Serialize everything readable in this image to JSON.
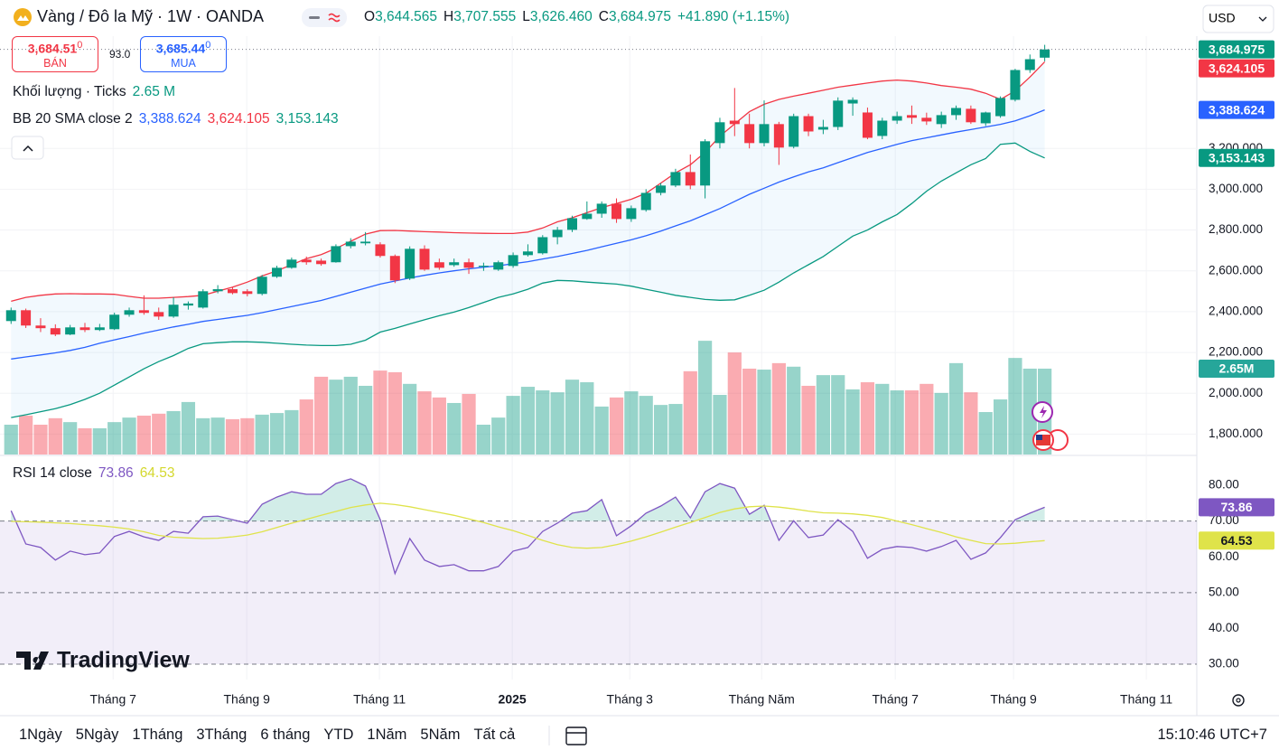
{
  "header": {
    "symbol": "Vàng / Đô la Mỹ · 1W · OANDA",
    "ohlc": [
      {
        "key": "O",
        "value": "3,644.565"
      },
      {
        "key": "H",
        "value": "3,707.555"
      },
      {
        "key": "L",
        "value": "3,626.460"
      },
      {
        "key": "C",
        "value": "3,684.975"
      }
    ],
    "change": "+41.890 (+1.15%)",
    "currency": "USD"
  },
  "quote": {
    "sell": {
      "price": "3,684.51",
      "digit": "0",
      "label": "BÁN"
    },
    "spread": "93.0",
    "buy": {
      "price": "3,685.44",
      "digit": "0",
      "label": "MUA"
    }
  },
  "chart_data": [
    {
      "type": "candlestick",
      "xlim": [
        -0.75,
        80.3
      ],
      "xticks": [
        {
          "value": 6.91,
          "label": "Tháng 7"
        },
        {
          "value": 15.96,
          "label": "Tháng 9"
        },
        {
          "value": 24.95,
          "label": "Tháng 11"
        },
        {
          "value": 33.94,
          "label": "2025"
        },
        {
          "value": 41.9,
          "label": "Tháng 3"
        },
        {
          "value": 50.83,
          "label": "Tháng Năm"
        },
        {
          "value": 59.88,
          "label": "Tháng 7"
        },
        {
          "value": 67.89,
          "label": "Tháng 9"
        },
        {
          "value": 76.88,
          "label": "Tháng 11"
        }
      ],
      "ylim": [
        1700,
        3750
      ],
      "yticks": [
        {
          "value": 1800,
          "label": "1,800.000"
        },
        {
          "value": 2000,
          "label": "2,000.000"
        },
        {
          "value": 2200,
          "label": "2,200.000"
        },
        {
          "value": 2400,
          "label": "2,400.000"
        },
        {
          "value": 2600,
          "label": "2,600.000"
        },
        {
          "value": 2800,
          "label": "2,800.000"
        },
        {
          "value": 3000,
          "label": "3,000.000"
        },
        {
          "value": 3200,
          "label": "3,200.000"
        }
      ],
      "grid": true,
      "up_color": "#089981",
      "down_color": "#f23645",
      "open": [
        2354,
        2407,
        2332,
        2319,
        2288,
        2323,
        2310,
        2314,
        2385,
        2407,
        2398,
        2376,
        2430,
        2420,
        2500,
        2510,
        2500,
        2487,
        2571,
        2615,
        2655,
        2650,
        2642,
        2721,
        2735,
        2730,
        2673,
        2562,
        2708,
        2642,
        2628,
        2642,
        2620,
        2606,
        2624,
        2677,
        2686,
        2765,
        2801,
        2854,
        2880,
        2929,
        2854,
        2898,
        2982,
        3018,
        3084,
        3018,
        3226,
        3336,
        3319,
        3226,
        3319,
        3208,
        3358,
        3292,
        3305,
        3420,
        3376,
        3261,
        3336,
        3363,
        3350,
        3319,
        3363,
        3394,
        3323,
        3358,
        3438,
        3584,
        3644.565
      ],
      "high": [
        2420,
        2415,
        2368,
        2338,
        2335,
        2345,
        2340,
        2395,
        2420,
        2480,
        2420,
        2470,
        2450,
        2510,
        2530,
        2520,
        2510,
        2580,
        2625,
        2665,
        2670,
        2660,
        2730,
        2760,
        2790,
        2740,
        2680,
        2720,
        2725,
        2660,
        2660,
        2660,
        2640,
        2650,
        2690,
        2730,
        2775,
        2815,
        2870,
        2940,
        2940,
        2955,
        2920,
        3000,
        3030,
        3100,
        3170,
        3245,
        3350,
        3496,
        3370,
        3435,
        3330,
        3370,
        3370,
        3340,
        3450,
        3450,
        3400,
        3350,
        3380,
        3410,
        3375,
        3380,
        3410,
        3410,
        3380,
        3455,
        3590,
        3660,
        3707.555
      ],
      "low": [
        2340,
        2320,
        2300,
        2280,
        2285,
        2300,
        2305,
        2310,
        2375,
        2385,
        2360,
        2370,
        2410,
        2415,
        2490,
        2485,
        2475,
        2480,
        2565,
        2610,
        2630,
        2625,
        2640,
        2710,
        2725,
        2665,
        2540,
        2555,
        2600,
        2605,
        2620,
        2585,
        2600,
        2600,
        2615,
        2670,
        2680,
        2730,
        2790,
        2850,
        2860,
        2835,
        2840,
        2890,
        2970,
        3010,
        3000,
        2955,
        3200,
        3260,
        3200,
        3210,
        3119,
        3200,
        3260,
        3270,
        3290,
        3360,
        3245,
        3245,
        3320,
        3320,
        3315,
        3300,
        3340,
        3320,
        3310,
        3350,
        3430,
        3570,
        3626.46
      ],
      "close": [
        2407,
        2332,
        2319,
        2288,
        2323,
        2310,
        2323,
        2385,
        2407,
        2394,
        2376,
        2434,
        2440,
        2500,
        2510,
        2491,
        2487,
        2571,
        2615,
        2655,
        2642,
        2633,
        2721,
        2743,
        2743,
        2673,
        2553,
        2708,
        2606,
        2615,
        2642,
        2615,
        2625,
        2642,
        2677,
        2695,
        2765,
        2801,
        2858,
        2880,
        2929,
        2854,
        2907,
        2982,
        3018,
        3084,
        3018,
        3235,
        3328,
        3319,
        3226,
        3319,
        3204,
        3358,
        3283,
        3305,
        3434,
        3438,
        3252,
        3336,
        3358,
        3350,
        3332,
        3363,
        3398,
        3328,
        3376,
        3447,
        3584,
        3637,
        3684.975
      ],
      "volume_title": "Khối lượng · Ticks",
      "volume_ylim": [
        0,
        12.91
      ],
      "volume": [
        0.92,
        1.2,
        0.92,
        1.12,
        1.0,
        0.81,
        0.81,
        1.0,
        1.14,
        1.2,
        1.26,
        1.34,
        1.62,
        1.12,
        1.14,
        1.09,
        1.12,
        1.23,
        1.28,
        1.37,
        1.7,
        2.4,
        2.31,
        2.4,
        2.12,
        2.59,
        2.54,
        2.18,
        1.95,
        1.76,
        1.59,
        1.87,
        0.92,
        1.14,
        1.81,
        2.09,
        1.98,
        1.92,
        2.31,
        2.23,
        1.48,
        1.76,
        1.95,
        1.81,
        1.53,
        1.56,
        2.57,
        3.51,
        1.84,
        3.15,
        2.65,
        2.62,
        2.82,
        2.71,
        2.12,
        2.45,
        2.45,
        2.01,
        2.23,
        2.18,
        1.98,
        1.98,
        2.18,
        1.9,
        2.82,
        1.92,
        1.31,
        1.7,
        2.98,
        2.65,
        2.65
      ],
      "volume_labels": {
        "70": "2.65 M"
      },
      "volume_badge": "2.65M",
      "indicator_title": "BB 20 SMA close 2",
      "series": [
        {
          "color": "#2962ff",
          "value_labels": {
            "70": "3,388.624"
          },
          "values": [
            2168,
            2178,
            2188,
            2198,
            2210,
            2225,
            2245,
            2262,
            2278,
            2295,
            2310,
            2325,
            2338,
            2352,
            2362,
            2372,
            2382,
            2395,
            2410,
            2425,
            2440,
            2455,
            2475,
            2495,
            2515,
            2535,
            2550,
            2565,
            2578,
            2590,
            2600,
            2610,
            2618,
            2625,
            2635,
            2645,
            2658,
            2670,
            2685,
            2700,
            2718,
            2735,
            2752,
            2772,
            2795,
            2820,
            2845,
            2875,
            2905,
            2940,
            2975,
            3005,
            3035,
            3060,
            3085,
            3105,
            3130,
            3155,
            3180,
            3200,
            3220,
            3238,
            3252,
            3266,
            3280,
            3292,
            3305,
            3318,
            3335,
            3360,
            3388.624
          ]
        },
        {
          "color": "#f23645",
          "value_labels": {
            "70": "3,624.105"
          },
          "values": [
            2451,
            2470,
            2480,
            2487,
            2488,
            2487,
            2487,
            2485,
            2475,
            2466,
            2466,
            2470,
            2474,
            2480,
            2500,
            2520,
            2545,
            2575,
            2600,
            2630,
            2660,
            2680,
            2710,
            2745,
            2780,
            2797,
            2798,
            2795,
            2792,
            2790,
            2787,
            2785,
            2784,
            2783,
            2783,
            2790,
            2810,
            2840,
            2860,
            2885,
            2910,
            2930,
            2951,
            2980,
            3030,
            3080,
            3120,
            3180,
            3260,
            3320,
            3380,
            3416,
            3440,
            3456,
            3470,
            3485,
            3500,
            3510,
            3520,
            3530,
            3535,
            3530,
            3520,
            3508,
            3500,
            3490,
            3470,
            3440,
            3482,
            3550,
            3624.105
          ]
        },
        {
          "color": "#089981",
          "value_labels": {
            "70": "3,153.143"
          },
          "values": [
            1881,
            1895,
            1910,
            1925,
            1945,
            1970,
            2000,
            2040,
            2080,
            2120,
            2155,
            2185,
            2220,
            2243,
            2248,
            2252,
            2252,
            2250,
            2245,
            2240,
            2236,
            2234,
            2234,
            2240,
            2260,
            2300,
            2318,
            2340,
            2360,
            2380,
            2398,
            2420,
            2445,
            2470,
            2487,
            2510,
            2540,
            2553,
            2551,
            2545,
            2540,
            2535,
            2525,
            2510,
            2495,
            2480,
            2470,
            2460,
            2456,
            2458,
            2480,
            2505,
            2545,
            2590,
            2630,
            2670,
            2720,
            2770,
            2800,
            2840,
            2876,
            2930,
            2990,
            3040,
            3080,
            3120,
            3150,
            3220,
            3226,
            3185,
            3153.143
          ]
        }
      ]
    },
    {
      "type": "line",
      "title": "RSI 14 close",
      "ylim": [
        25.7,
        88.1
      ],
      "yticks": [
        {
          "value": 30,
          "label": "30.00"
        },
        {
          "value": 40,
          "label": "40.00"
        },
        {
          "value": 50,
          "label": "50.00"
        },
        {
          "value": 60,
          "label": "60.00"
        },
        {
          "value": 70,
          "label": "70.00"
        },
        {
          "value": 80,
          "label": "80.00"
        }
      ],
      "bands": [
        70,
        50,
        30
      ],
      "series": [
        {
          "color": "#7e57c2",
          "values": [
            72.9,
            63.6,
            62.6,
            59.1,
            61.6,
            60.6,
            61.1,
            65.7,
            67.1,
            65.6,
            64.6,
            67.1,
            66.6,
            71.2,
            71.4,
            70.4,
            69.4,
            74.7,
            76.7,
            78.2,
            77.5,
            77.5,
            80.5,
            81.8,
            79.8,
            70.4,
            55.3,
            65.1,
            59.1,
            57.3,
            57.8,
            56.1,
            56.1,
            57.3,
            61.6,
            62.6,
            67.1,
            69.4,
            72.2,
            72.9,
            76.0,
            65.9,
            68.7,
            72.2,
            74.2,
            76.7,
            70.9,
            78.2,
            80.5,
            79.2,
            71.9,
            74.4,
            64.6,
            70.1,
            65.4,
            66.1,
            70.4,
            67.1,
            59.6,
            62.1,
            62.9,
            62.6,
            61.6,
            62.9,
            64.6,
            59.3,
            61.1,
            65.4,
            70.4,
            72.2,
            73.86
          ]
        },
        {
          "color": "#dfe34a",
          "values": [
            69.9,
            69.8,
            69.7,
            69.5,
            69.3,
            69.0,
            68.7,
            68.3,
            67.8,
            67.0,
            66.0,
            65.5,
            65.3,
            65.1,
            65.2,
            65.6,
            66.1,
            67.0,
            68.2,
            69.4,
            70.5,
            71.6,
            72.7,
            73.8,
            74.5,
            75.0,
            74.6,
            74.0,
            73.2,
            72.4,
            71.6,
            70.6,
            69.6,
            68.4,
            67.3,
            66.0,
            64.6,
            63.4,
            62.6,
            62.4,
            62.6,
            63.4,
            64.4,
            65.6,
            66.9,
            68.3,
            69.6,
            71.0,
            72.4,
            73.4,
            74.0,
            74.2,
            73.9,
            73.4,
            72.8,
            72.3,
            72.2,
            72.0,
            71.6,
            71.0,
            70.0,
            69.0,
            67.9,
            66.8,
            65.6,
            64.6,
            63.7,
            63.6,
            63.8,
            64.2,
            64.53
          ]
        }
      ]
    }
  ],
  "logo": "TradingView",
  "toolbar": {
    "ranges": [
      "1Ngày",
      "5Ngày",
      "1Tháng",
      "3Tháng",
      "6 tháng",
      "YTD",
      "1Năm",
      "5Năm",
      "Tất cả"
    ],
    "clock": "15:10:46 UTC+7"
  }
}
